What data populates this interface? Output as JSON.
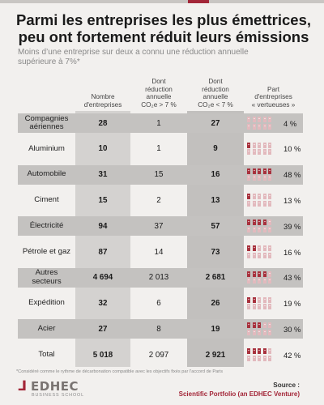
{
  "title_line1": "Parmi les entreprises les plus émettrices,",
  "title_line2": "peu ont fortement réduit leurs émissions",
  "subtitle_line1": "Moins d’une entreprise sur deux a connu une réduction annuelle",
  "subtitle_line2": "supérieure à 7%*",
  "chart_data": {
    "type": "table",
    "columns": [
      {
        "key": "total",
        "lines": [
          "Nombre",
          "d'entreprises"
        ]
      },
      {
        "key": "above7",
        "lines": [
          "Dont",
          "réduction",
          "annuelle",
          "CO₂e > 7 %"
        ]
      },
      {
        "key": "below7",
        "lines": [
          "Dont",
          "réduction",
          "annuelle",
          "CO₂e < 7 %"
        ]
      },
      {
        "key": "share",
        "lines": [
          "Part",
          "d'entreprises",
          "« vertueuses »"
        ]
      }
    ],
    "rows": [
      {
        "label": [
          "Compagnies",
          "aériennes"
        ],
        "total": "28",
        "above7": "1",
        "below7": "27",
        "share": "4 %",
        "share_value": 4
      },
      {
        "label": [
          "Aluminium"
        ],
        "total": "10",
        "above7": "1",
        "below7": "9",
        "share": "10 %",
        "share_value": 10
      },
      {
        "label": [
          "Automobile"
        ],
        "total": "31",
        "above7": "15",
        "below7": "16",
        "share": "48 %",
        "share_value": 48
      },
      {
        "label": [
          "Ciment"
        ],
        "total": "15",
        "above7": "2",
        "below7": "13",
        "share": "13 %",
        "share_value": 13
      },
      {
        "label": [
          "Électricité"
        ],
        "total": "94",
        "above7": "37",
        "below7": "57",
        "share": "39 %",
        "share_value": 39
      },
      {
        "label": [
          "Pétrole et gaz"
        ],
        "total": "87",
        "above7": "14",
        "below7": "73",
        "share": "16 %",
        "share_value": 16
      },
      {
        "label": [
          "Autres",
          "secteurs"
        ],
        "total": "4 694",
        "above7": "2 013",
        "below7": "2 681",
        "share": "43 %",
        "share_value": 43
      },
      {
        "label": [
          "Expédition"
        ],
        "total": "32",
        "above7": "6",
        "below7": "26",
        "share": "19 %",
        "share_value": 19
      },
      {
        "label": [
          "Acier"
        ],
        "total": "27",
        "above7": "8",
        "below7": "19",
        "share": "30 %",
        "share_value": 30
      },
      {
        "label": [
          "Total"
        ],
        "total": "5 018",
        "above7": "2 097",
        "below7": "2 921",
        "share": "42 %",
        "share_value": 42
      }
    ]
  },
  "colors": {
    "accent": "#a32638",
    "icon_filled": "#a8323e",
    "icon_empty": "#e2b9bd",
    "band_light": "#d4d2d0",
    "band_dark": "#c2c0be",
    "row_shade": "#c4c2c0"
  },
  "icon_name": "building-icon",
  "footnote": "*Considéré comme le rythme de décarbonation compatible avec les objectifs fixés par l'accord de Paris",
  "logo": {
    "mark": "⅃",
    "name": "EDHEC",
    "sub": "BUSINESS SCHOOL"
  },
  "source_label": "Source :",
  "source_name": "Scientific Portfolio (an EDHEC Venture)"
}
